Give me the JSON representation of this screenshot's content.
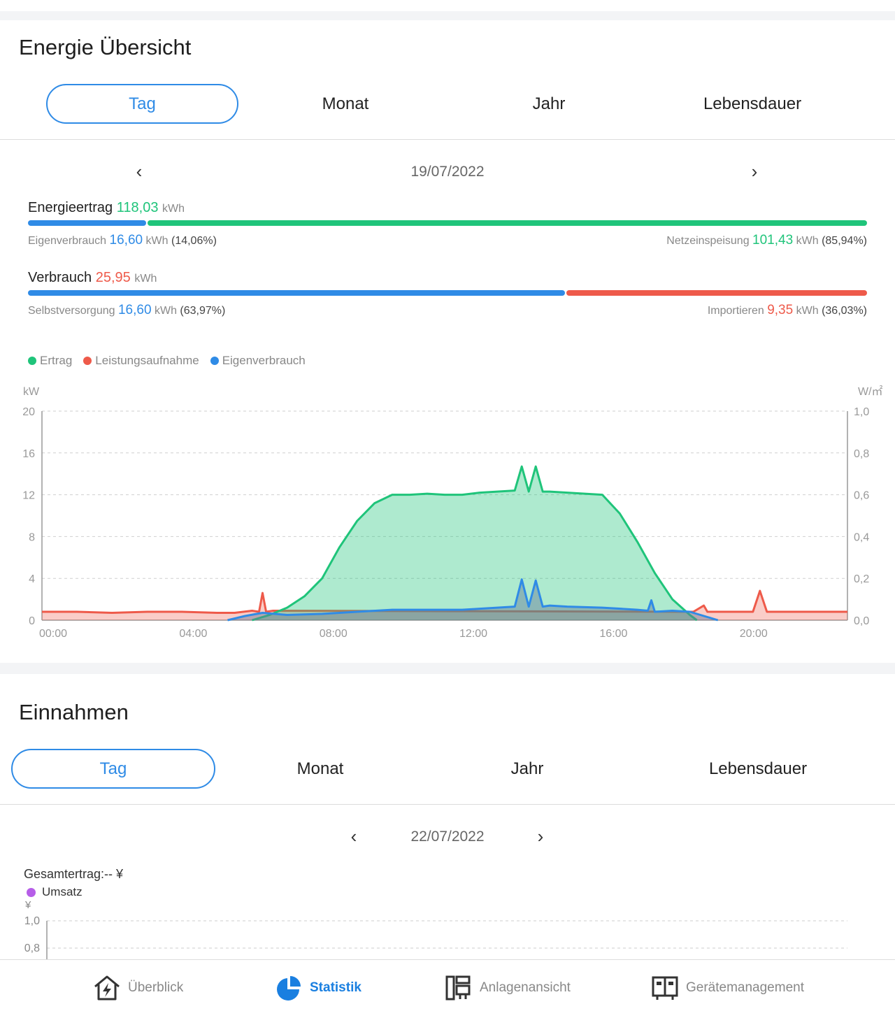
{
  "energy": {
    "title": "Energie Übersicht",
    "tabs": [
      "Tag",
      "Monat",
      "Jahr",
      "Lebensdauer"
    ],
    "date": "19/07/2022",
    "prev_icon": "‹",
    "next_icon": "›",
    "yield": {
      "label": "Energieertrag",
      "value": "118,03",
      "unit": "kWh",
      "self_ratio": 0.1406
    },
    "self_use": {
      "label": "Eigenverbrauch",
      "value": "16,60",
      "unit": "kWh",
      "pct": "(14,06%)"
    },
    "feed_in": {
      "label": "Netzeinspeisung",
      "value": "101,43",
      "unit": "kWh",
      "pct": "(85,94%)"
    },
    "consumption": {
      "label": "Verbrauch",
      "value": "25,95",
      "unit": "kWh",
      "self_ratio": 0.6397
    },
    "self_supply": {
      "label": "Selbstversorgung",
      "value": "16,60",
      "unit": "kWh",
      "pct": "(63,97%)"
    },
    "import": {
      "label": "Importieren",
      "value": "9,35",
      "unit": "kWh",
      "pct": "(36,03%)"
    }
  },
  "colors": {
    "green": "#1fc47a",
    "red": "#ee5a4a",
    "blue": "#2f8be6",
    "purple": "#b65ee8"
  },
  "chart_data": {
    "type": "area",
    "legend": [
      "Ertrag",
      "Leistungsaufnahme",
      "Eigenverbrauch"
    ],
    "ylabel_left": "kW",
    "ylabel_right": "W/㎡",
    "ylim": [
      0,
      20
    ],
    "ylim_right": [
      0,
      1.0
    ],
    "yticks": [
      "0",
      "4",
      "8",
      "12",
      "16",
      "20"
    ],
    "yticks_right": [
      "0,0",
      "0,2",
      "0,4",
      "0,6",
      "0,8",
      "1,0"
    ],
    "xticks": [
      "00:00",
      "04:00",
      "08:00",
      "12:00",
      "16:00",
      "20:00"
    ],
    "grid": true,
    "series": [
      {
        "name": "Ertrag",
        "color": "#1fc47a",
        "x": [
          6.0,
          6.5,
          7.0,
          7.5,
          8.0,
          8.5,
          9.0,
          9.5,
          10.0,
          10.5,
          11.0,
          11.5,
          12.0,
          12.5,
          13.0,
          13.5,
          13.7,
          13.9,
          14.1,
          14.3,
          14.5,
          15.0,
          15.5,
          16.0,
          16.5,
          17.0,
          17.5,
          18.0,
          18.5,
          18.7
        ],
        "y": [
          0.0,
          0.5,
          1.2,
          2.3,
          4.0,
          7.0,
          9.5,
          11.2,
          12.0,
          12.0,
          12.1,
          12.0,
          12.0,
          12.2,
          12.3,
          12.4,
          14.7,
          12.3,
          14.7,
          12.3,
          12.3,
          12.2,
          12.1,
          12.0,
          10.2,
          7.5,
          4.5,
          2.0,
          0.5,
          0.0
        ]
      },
      {
        "name": "Leistungsaufnahme",
        "color": "#ee5a4a",
        "x": [
          0.0,
          1.0,
          2.0,
          3.0,
          4.0,
          5.0,
          5.5,
          6.0,
          6.2,
          6.3,
          6.4,
          6.6,
          18.6,
          18.9,
          19.0,
          19.1,
          19.5,
          20.0,
          20.3,
          20.5,
          20.7,
          21.0,
          22.0,
          23.0
        ],
        "y": [
          0.8,
          0.8,
          0.7,
          0.8,
          0.8,
          0.7,
          0.7,
          0.9,
          0.8,
          2.6,
          0.8,
          0.9,
          0.8,
          1.4,
          0.8,
          0.8,
          0.8,
          0.8,
          0.8,
          2.8,
          0.8,
          0.8,
          0.8,
          0.8
        ]
      },
      {
        "name": "Eigenverbrauch",
        "color": "#2f8be6",
        "x": [
          5.3,
          5.8,
          6.3,
          7.0,
          8.0,
          9.0,
          10.0,
          11.0,
          12.0,
          13.0,
          13.5,
          13.7,
          13.9,
          14.1,
          14.3,
          14.5,
          15.0,
          16.0,
          17.0,
          17.3,
          17.4,
          17.5,
          18.0,
          18.5,
          19.0,
          19.3
        ],
        "y": [
          0.0,
          0.4,
          0.7,
          0.5,
          0.6,
          0.8,
          1.0,
          1.0,
          1.0,
          1.2,
          1.3,
          3.9,
          1.3,
          3.8,
          1.3,
          1.4,
          1.3,
          1.2,
          1.0,
          0.9,
          1.9,
          0.8,
          0.9,
          0.8,
          0.3,
          0.0
        ]
      }
    ]
  },
  "revenue": {
    "title": "Einnahmen",
    "tabs": [
      "Tag",
      "Monat",
      "Jahr",
      "Lebensdauer"
    ],
    "date": "22/07/2022",
    "prev_icon": "‹",
    "next_icon": "›",
    "total": "Gesamtertrag:-- ¥",
    "legend": "Umsatz",
    "yunit": "¥",
    "yticks": [
      "1,0",
      "0,8"
    ]
  },
  "bottom_nav": [
    {
      "label": "Überblick",
      "icon": "house-lightning-icon"
    },
    {
      "label": "Statistik",
      "icon": "pie-chart-icon"
    },
    {
      "label": "Anlagenansicht",
      "icon": "layout-icon"
    },
    {
      "label": "Gerätemanagement",
      "icon": "device-icon"
    }
  ]
}
